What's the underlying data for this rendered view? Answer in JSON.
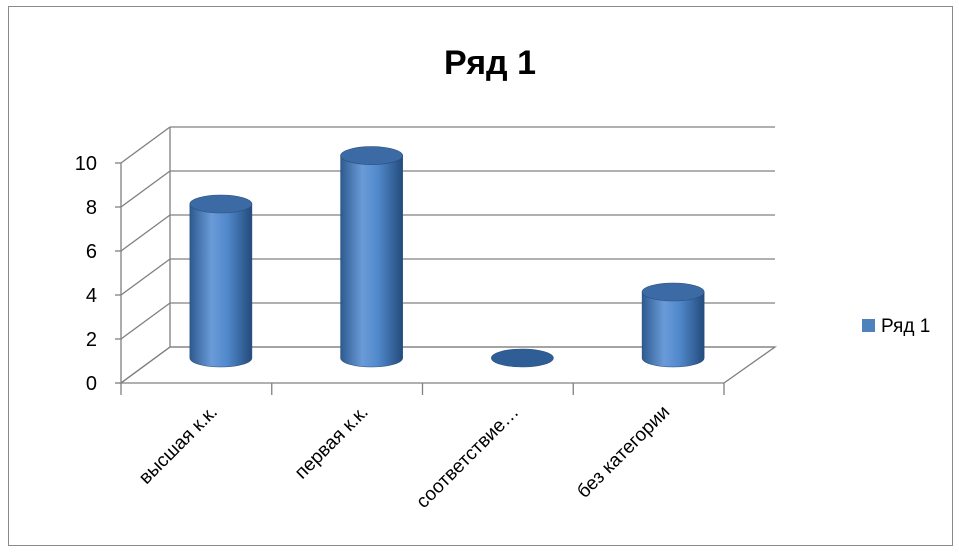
{
  "chart_data": {
    "type": "bar",
    "title": "Ряд 1",
    "categories": [
      "высшая к.к.",
      "первая к.к.",
      "соответствие…",
      "без категории"
    ],
    "series": [
      {
        "name": "Ряд 1",
        "values": [
          7,
          9.2,
          0,
          3
        ],
        "color": "#4F81BD"
      }
    ],
    "yticks": [
      "0",
      "2",
      "4",
      "6",
      "8",
      "10"
    ],
    "ylim": [
      0,
      10
    ],
    "grid": true,
    "legend": "right",
    "style": "3d-cylinder"
  }
}
